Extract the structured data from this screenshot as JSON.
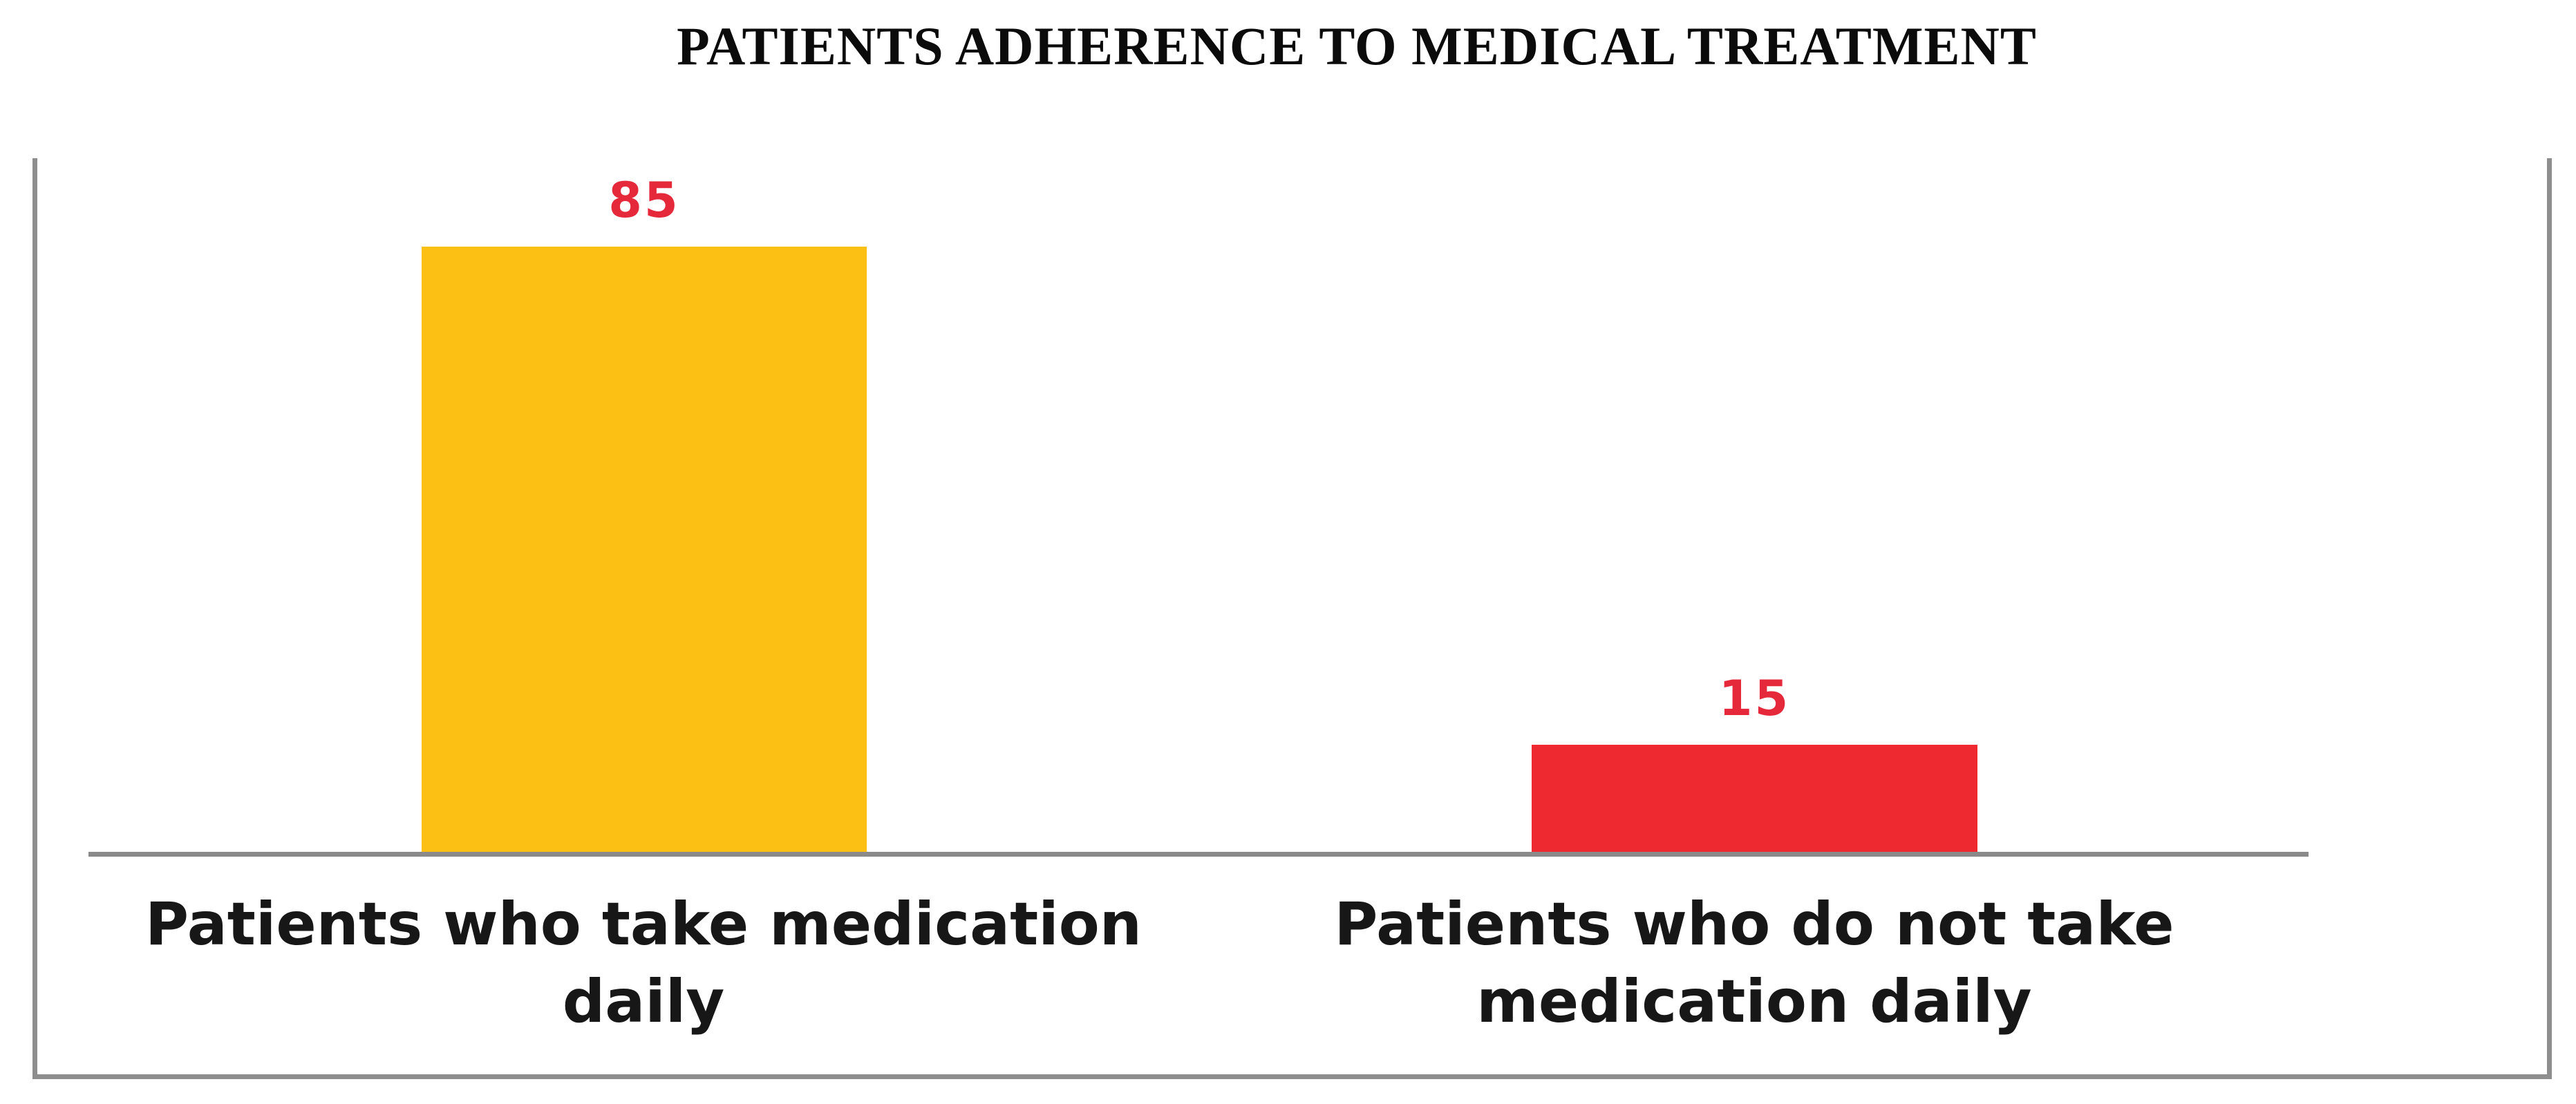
{
  "title": "PATIENTS ADHERENCE TO MEDICAL TREATMENT",
  "chart_data": {
    "type": "bar",
    "title": "PATIENTS ADHERENCE TO MEDICAL TREATMENT",
    "categories": [
      "Patients who take medication daily",
      "Patients who do not take medication daily"
    ],
    "values": [
      85,
      15
    ],
    "value_labels": [
      "85",
      "15"
    ],
    "xlabel": "",
    "ylabel": "",
    "ylim": [
      0,
      100
    ],
    "grid": false,
    "legend": false,
    "bar_colors": [
      "#FCBF13",
      "#EE2A30"
    ],
    "value_label_color": "#E5293A",
    "axis_color": "#8A8A8A"
  },
  "colors": {
    "background": "#FFFFFF",
    "frame_border": "#8E8E8E",
    "title_text": "#0B0B0B",
    "category_text": "#171717"
  }
}
